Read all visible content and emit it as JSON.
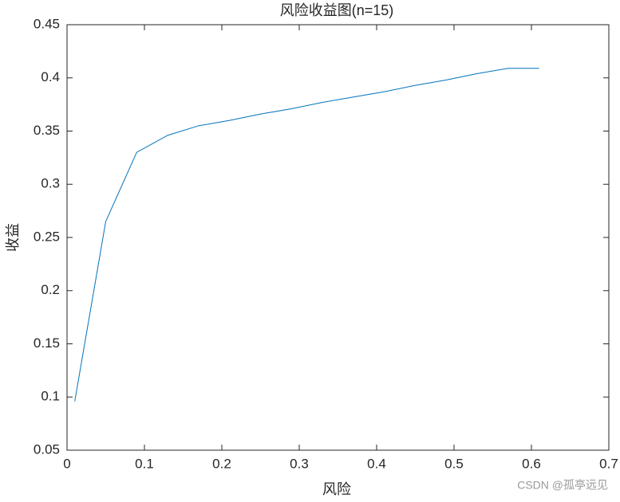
{
  "chart_data": {
    "type": "line",
    "title": "风险收益图(n=15)",
    "xlabel": "风险",
    "ylabel": "收益",
    "x": [
      0.01,
      0.05,
      0.09,
      0.13,
      0.17,
      0.21,
      0.25,
      0.29,
      0.33,
      0.37,
      0.41,
      0.45,
      0.49,
      0.53,
      0.57,
      0.61
    ],
    "series": [
      {
        "color": "#0072bd",
        "values": [
          0.096,
          0.265,
          0.33,
          0.346,
          0.355,
          0.36,
          0.366,
          0.371,
          0.377,
          0.382,
          0.387,
          0.393,
          0.398,
          0.404,
          0.409,
          0.409
        ]
      }
    ],
    "xlim": [
      0,
      0.7
    ],
    "xticks": [
      0,
      0.1,
      0.2,
      0.3,
      0.4,
      0.5,
      0.6,
      0.7
    ],
    "ylim": [
      0.05,
      0.45
    ],
    "yticks": [
      0.05,
      0.1,
      0.15,
      0.2,
      0.25,
      0.3,
      0.35,
      0.4,
      0.45
    ],
    "grid": false,
    "watermark": "CSDN @孤亭远见"
  }
}
